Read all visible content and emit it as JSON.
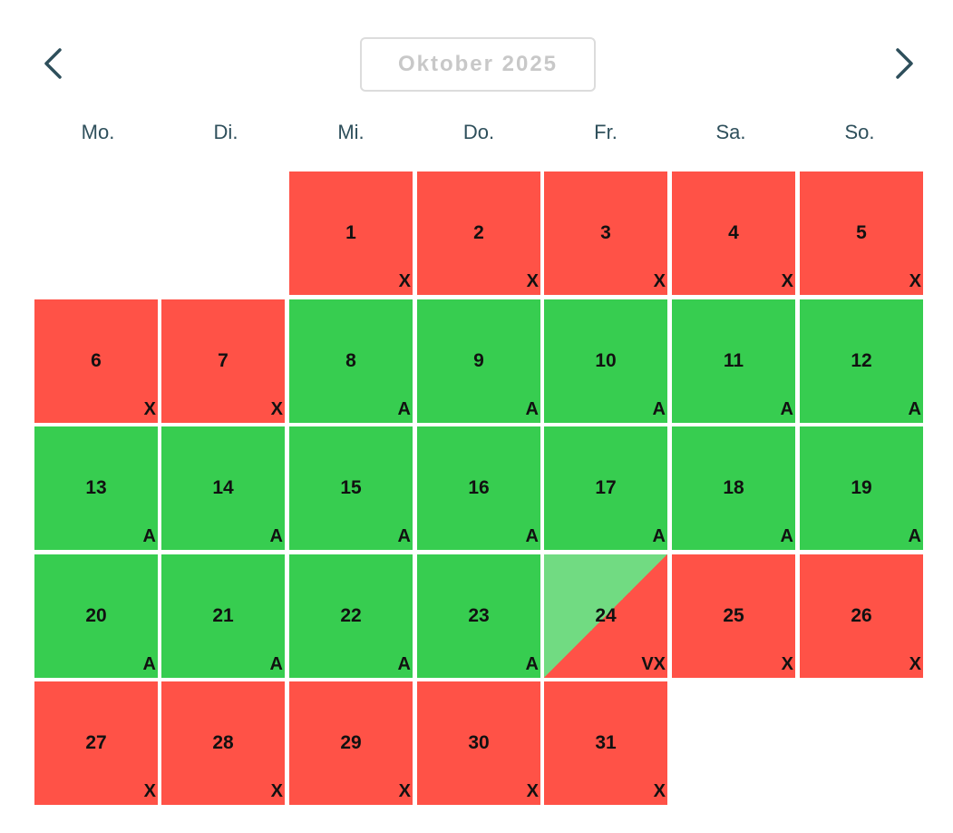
{
  "header": {
    "title": "Oktober 2025",
    "prev_icon": "chevron-left-icon",
    "next_icon": "chevron-right-icon"
  },
  "weekdays": [
    "Mo.",
    "Di.",
    "Mi.",
    "Do.",
    "Fr.",
    "Sa.",
    "So."
  ],
  "colors": {
    "unavailable": "#ff5247",
    "available": "#37cd50",
    "available_light": "#71db82",
    "weekday_text": "#2e4f5b",
    "title_text": "#c8c8c8"
  },
  "first_weekday_index": 2,
  "days": [
    {
      "day": "1",
      "code": "X",
      "status": "red"
    },
    {
      "day": "2",
      "code": "X",
      "status": "red"
    },
    {
      "day": "3",
      "code": "X",
      "status": "red"
    },
    {
      "day": "4",
      "code": "X",
      "status": "red"
    },
    {
      "day": "5",
      "code": "X",
      "status": "red"
    },
    {
      "day": "6",
      "code": "X",
      "status": "red"
    },
    {
      "day": "7",
      "code": "X",
      "status": "red"
    },
    {
      "day": "8",
      "code": "A",
      "status": "green"
    },
    {
      "day": "9",
      "code": "A",
      "status": "green"
    },
    {
      "day": "10",
      "code": "A",
      "status": "green"
    },
    {
      "day": "11",
      "code": "A",
      "status": "green"
    },
    {
      "day": "12",
      "code": "A",
      "status": "green"
    },
    {
      "day": "13",
      "code": "A",
      "status": "green"
    },
    {
      "day": "14",
      "code": "A",
      "status": "green"
    },
    {
      "day": "15",
      "code": "A",
      "status": "green"
    },
    {
      "day": "16",
      "code": "A",
      "status": "green"
    },
    {
      "day": "17",
      "code": "A",
      "status": "green"
    },
    {
      "day": "18",
      "code": "A",
      "status": "green"
    },
    {
      "day": "19",
      "code": "A",
      "status": "green"
    },
    {
      "day": "20",
      "code": "A",
      "status": "green"
    },
    {
      "day": "21",
      "code": "A",
      "status": "green"
    },
    {
      "day": "22",
      "code": "A",
      "status": "green"
    },
    {
      "day": "23",
      "code": "A",
      "status": "green"
    },
    {
      "day": "24",
      "code": "VX",
      "status": "split"
    },
    {
      "day": "25",
      "code": "X",
      "status": "red"
    },
    {
      "day": "26",
      "code": "X",
      "status": "red"
    },
    {
      "day": "27",
      "code": "X",
      "status": "red"
    },
    {
      "day": "28",
      "code": "X",
      "status": "red"
    },
    {
      "day": "29",
      "code": "X",
      "status": "red"
    },
    {
      "day": "30",
      "code": "X",
      "status": "red"
    },
    {
      "day": "31",
      "code": "X",
      "status": "red"
    }
  ]
}
